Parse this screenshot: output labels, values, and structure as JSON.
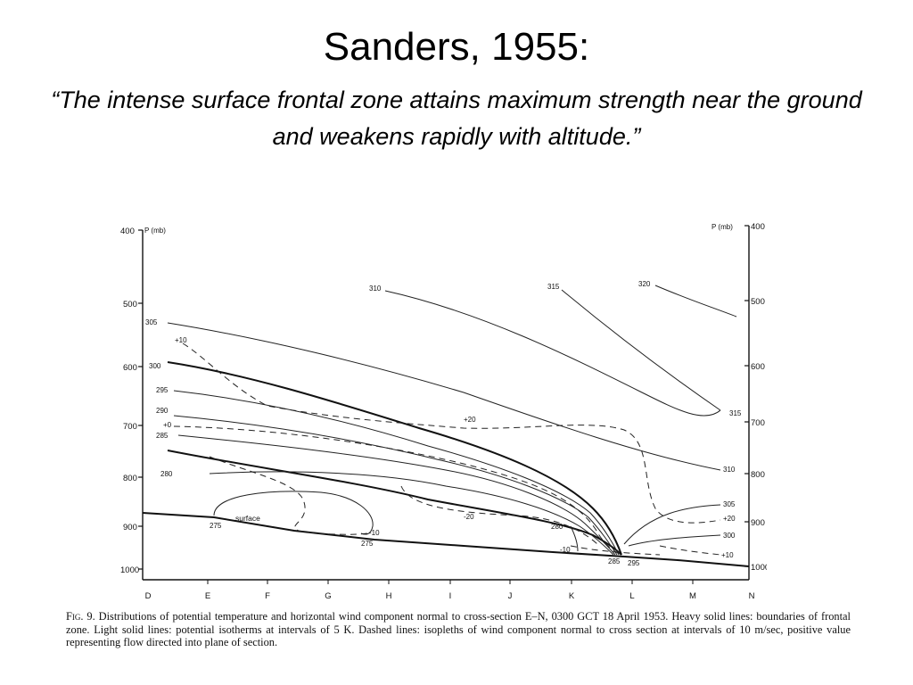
{
  "slide": {
    "title": "Sanders, 1955:",
    "quote": "“The intense surface frontal zone attains maximum strength near the ground and weakens rapidly with altitude.”"
  },
  "figure": {
    "p_label_left": "P (mb)",
    "p_label_right": "P (mb)",
    "pressure_ticks": [
      "400",
      "500",
      "600",
      "700",
      "800",
      "900",
      "1000"
    ],
    "stations": [
      "D",
      "E",
      "F",
      "G",
      "H",
      "I",
      "J",
      "K",
      "L",
      "M",
      "N"
    ],
    "isotherm_labels": [
      "305",
      "300",
      "295",
      "290",
      "285",
      "280",
      "275",
      "275",
      "280",
      "285",
      "295",
      "300",
      "305",
      "310",
      "315",
      "310",
      "315",
      "320"
    ],
    "wind_labels": [
      "+10",
      "+0",
      "+20",
      "-20",
      "-10",
      "-10",
      "+20",
      "+10"
    ],
    "surface_label": "surface",
    "caption_lead": "Fig. 9.",
    "caption_text": "Distributions of potential temperature and horizontal wind component normal to cross-section E–N, 0300 GCT 18 April 1953. Heavy solid lines: boundaries of frontal zone. Light solid lines: potential isotherms at intervals of 5 K. Dashed lines: isopleths of wind component normal to cross section at intervals of 10 m/sec, positive value representing flow directed into plane of section."
  }
}
